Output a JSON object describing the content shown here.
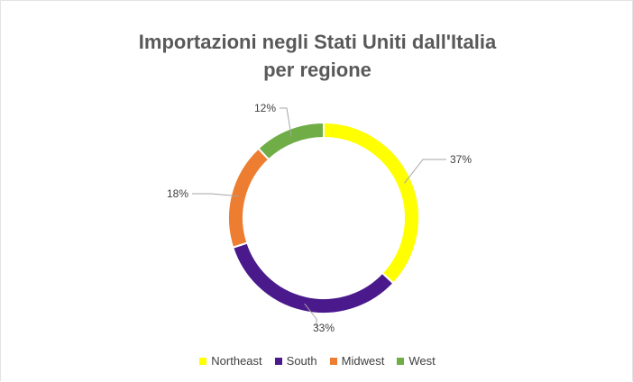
{
  "chart_data": {
    "type": "pie",
    "variant": "donut",
    "title_lines": [
      "Importazioni negli Stati Uniti dall'Italia",
      "per regione"
    ],
    "categories": [
      "Northeast",
      "South",
      "Midwest",
      "West"
    ],
    "values": [
      37,
      33,
      18,
      12
    ],
    "value_labels": [
      "37%",
      "33%",
      "18%",
      "12%"
    ],
    "colors": [
      "#ffff00",
      "#4a1a8c",
      "#ed7d31",
      "#70ad47"
    ],
    "legend_position": "bottom",
    "data_labels": "outside with leader lines"
  }
}
